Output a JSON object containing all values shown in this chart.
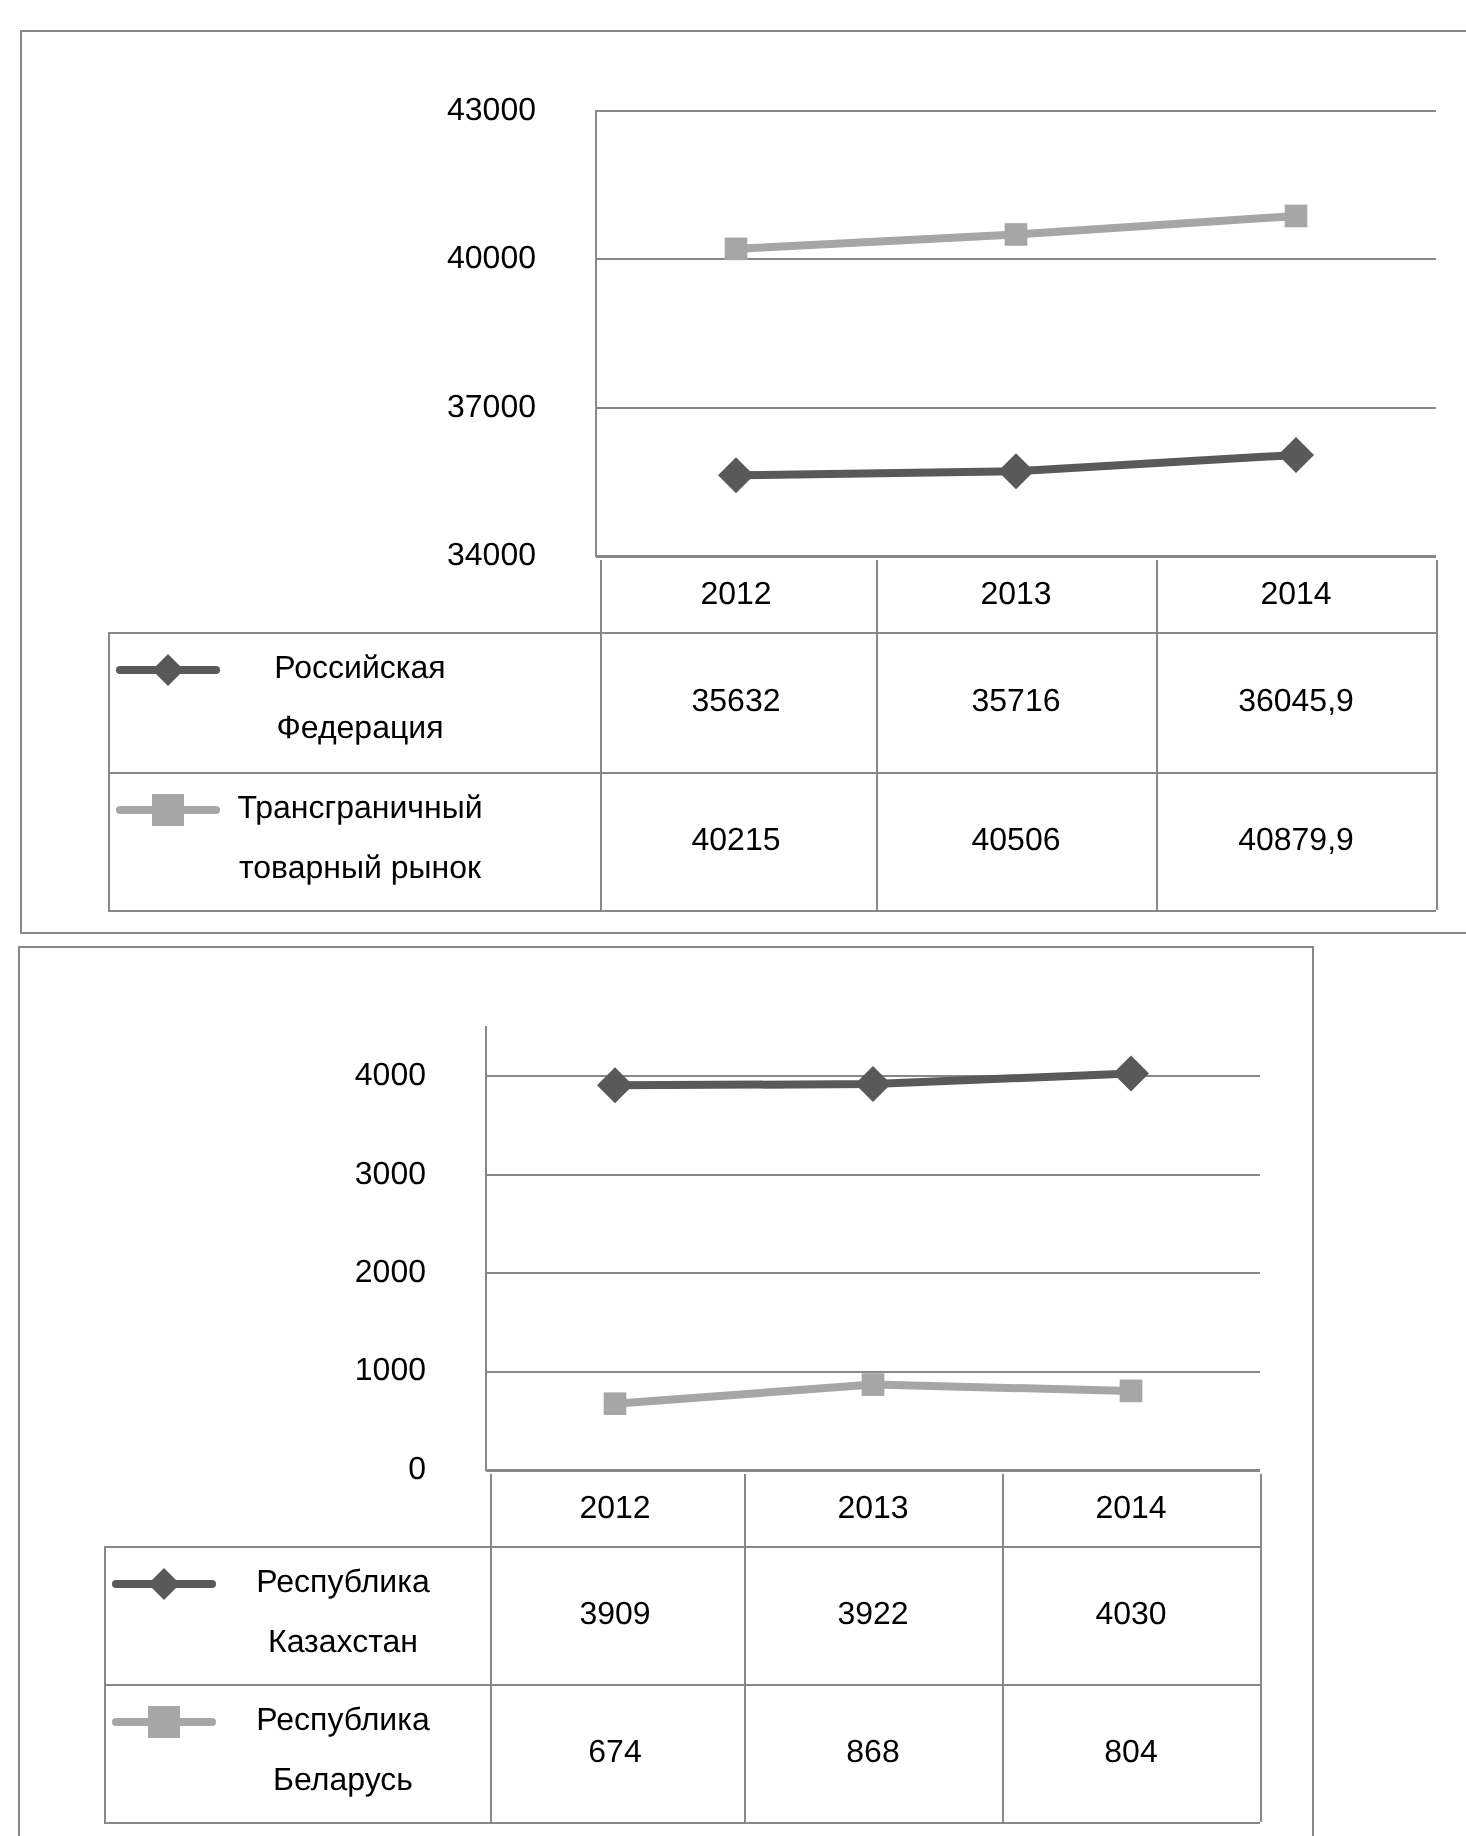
{
  "chart_data": [
    {
      "type": "line",
      "categories": [
        "2012",
        "2013",
        "2014"
      ],
      "ylim": [
        34000,
        43000
      ],
      "yticks": [
        34000,
        37000,
        40000,
        43000
      ],
      "grid": "y",
      "legend": "bottom",
      "line_style": "solid",
      "series": [
        {
          "name": "Российская Федерация",
          "color": "#595959",
          "marker": "diamond",
          "values": [
            35632,
            35716,
            36045.9
          ],
          "value_labels": [
            "35632",
            "35716",
            "36045,9"
          ]
        },
        {
          "name": "Трансграничный товарный рынок",
          "color": "#a6a6a6",
          "marker": "square",
          "values": [
            40215,
            40506,
            40879.9
          ],
          "value_labels": [
            "40215",
            "40506",
            "40879,9"
          ]
        }
      ]
    },
    {
      "type": "line",
      "categories": [
        "2012",
        "2013",
        "2014"
      ],
      "ylim": [
        0,
        4500
      ],
      "yticks": [
        0,
        1000,
        2000,
        3000,
        4000
      ],
      "grid": "y",
      "legend": "bottom",
      "line_style": "solid",
      "data_labels": true,
      "series": [
        {
          "name": "Республика Казахстан",
          "color": "#595959",
          "marker": "diamond",
          "values": [
            3909,
            3922,
            4030
          ]
        },
        {
          "name": "Республика Беларусь",
          "color": "#a6a6a6",
          "marker": "square",
          "values": [
            674,
            868,
            804
          ]
        }
      ]
    }
  ]
}
